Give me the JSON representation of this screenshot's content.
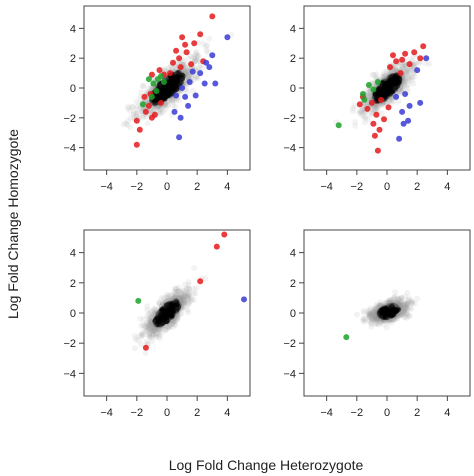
{
  "figure": {
    "xlabel": "Log Fold Change Heterozygote",
    "ylabel": "Log Fold Change Homozygote"
  },
  "colors": {
    "background_points": "#9a9a9a",
    "dense_points": "#000000",
    "red_points": "#e41a1c",
    "blue_points": "#3b3bd6",
    "green_points": "#1aa32a"
  },
  "chart_data": [
    {
      "type": "scatter",
      "panel": "top-left",
      "xlim": [
        -5.5,
        5.5
      ],
      "ylim": [
        -5.5,
        5.5
      ],
      "xticks": [
        -4,
        -2,
        0,
        2,
        4
      ],
      "yticks": [
        -4,
        -2,
        0,
        2,
        4
      ],
      "grid": false,
      "cloud": {
        "center": [
          0,
          0
        ],
        "spread_major": 1.2,
        "spread_minor": 0.45,
        "tilt_deg": 45
      },
      "groups": [
        {
          "color": "red",
          "points": [
            [
              3.0,
              4.8
            ],
            [
              2.2,
              3.6
            ],
            [
              1.8,
              3.0
            ],
            [
              1.3,
              2.4
            ],
            [
              0.8,
              2.0
            ],
            [
              0.4,
              1.7
            ],
            [
              1.2,
              2.9
            ],
            [
              0.6,
              2.5
            ],
            [
              -0.5,
              1.2
            ],
            [
              -1.0,
              0.9
            ],
            [
              -1.5,
              -0.6
            ],
            [
              -1.2,
              -1.2
            ],
            [
              -0.8,
              -1.8
            ],
            [
              -2.0,
              -2.2
            ],
            [
              -1.8,
              -2.8
            ],
            [
              -2.0,
              -3.8
            ],
            [
              -1.0,
              -2.0
            ],
            [
              -1.4,
              -1.6
            ],
            [
              -0.4,
              -1.0
            ],
            [
              0.2,
              1.0
            ],
            [
              1.6,
              1.6
            ],
            [
              2.4,
              1.8
            ],
            [
              -1.1,
              -0.4
            ],
            [
              0.9,
              1.4
            ],
            [
              1.0,
              3.4
            ],
            [
              -0.2,
              0.9
            ]
          ]
        },
        {
          "color": "blue",
          "points": [
            [
              4.0,
              3.4
            ],
            [
              2.6,
              1.7
            ],
            [
              2.2,
              1.0
            ],
            [
              1.5,
              0.4
            ],
            [
              1.0,
              0.0
            ],
            [
              0.6,
              -0.5
            ],
            [
              1.4,
              -1.2
            ],
            [
              1.9,
              -0.5
            ],
            [
              2.8,
              1.4
            ],
            [
              3.2,
              0.3
            ],
            [
              0.5,
              -1.6
            ],
            [
              0.9,
              -2.0
            ],
            [
              0.8,
              -3.3
            ],
            [
              3.0,
              2.2
            ],
            [
              1.2,
              -0.6
            ],
            [
              2.5,
              0.3
            ],
            [
              1.7,
              1.1
            ]
          ]
        },
        {
          "color": "green",
          "points": [
            [
              -1.2,
              0.6
            ],
            [
              -0.6,
              0.6
            ],
            [
              -0.9,
              0.3
            ],
            [
              -0.4,
              0.8
            ],
            [
              -1.6,
              -1.1
            ],
            [
              -0.7,
              -0.2
            ],
            [
              -0.2,
              0.4
            ],
            [
              -1.0,
              -0.6
            ]
          ]
        }
      ]
    },
    {
      "type": "scatter",
      "panel": "top-right",
      "xlim": [
        -5.5,
        5.5
      ],
      "ylim": [
        -5.5,
        5.5
      ],
      "xticks": [
        -4,
        -2,
        0,
        2,
        4
      ],
      "yticks": [
        -4,
        -2,
        0,
        2,
        4
      ],
      "grid": false,
      "cloud": {
        "center": [
          0,
          0
        ],
        "spread_major": 1.0,
        "spread_minor": 0.4,
        "tilt_deg": 45
      },
      "groups": [
        {
          "color": "red",
          "points": [
            [
              2.4,
              2.8
            ],
            [
              1.8,
              2.4
            ],
            [
              1.2,
              2.3
            ],
            [
              1.5,
              1.6
            ],
            [
              0.6,
              1.8
            ],
            [
              0.2,
              1.4
            ],
            [
              0.9,
              1.0
            ],
            [
              2.2,
              2.0
            ],
            [
              -0.4,
              -0.8
            ],
            [
              -1.0,
              -1.0
            ],
            [
              -0.7,
              -1.8
            ],
            [
              -0.9,
              -2.4
            ],
            [
              -0.5,
              -2.8
            ],
            [
              -0.8,
              -3.2
            ],
            [
              -0.6,
              -4.2
            ],
            [
              -1.6,
              -0.6
            ],
            [
              -1.8,
              -1.1
            ],
            [
              -1.3,
              -1.4
            ],
            [
              0.1,
              -1.3
            ],
            [
              0.4,
              2.2
            ],
            [
              -0.2,
              -2.1
            ],
            [
              1.0,
              1.9
            ]
          ]
        },
        {
          "color": "blue",
          "points": [
            [
              2.2,
              -1.0
            ],
            [
              1.5,
              -1.2
            ],
            [
              1.0,
              -1.6
            ],
            [
              1.4,
              -2.2
            ],
            [
              1.1,
              -2.4
            ],
            [
              0.8,
              -3.4
            ],
            [
              2.6,
              2.0
            ],
            [
              2.0,
              1.2
            ],
            [
              0.6,
              -0.6
            ],
            [
              1.2,
              -0.4
            ]
          ]
        },
        {
          "color": "green",
          "points": [
            [
              -3.2,
              -2.5
            ],
            [
              -1.6,
              -0.4
            ],
            [
              -1.2,
              0.2
            ],
            [
              -0.9,
              -0.1
            ],
            [
              -1.5,
              -0.8
            ],
            [
              -0.6,
              0.4
            ]
          ]
        }
      ]
    },
    {
      "type": "scatter",
      "panel": "bottom-left",
      "xlim": [
        -5.5,
        5.5
      ],
      "ylim": [
        -5.5,
        5.5
      ],
      "xticks": [
        -4,
        -2,
        0,
        2,
        4
      ],
      "yticks": [
        -4,
        -2,
        0,
        2,
        4
      ],
      "grid": false,
      "cloud": {
        "center": [
          0,
          0
        ],
        "spread_major": 0.9,
        "spread_minor": 0.35,
        "tilt_deg": 45
      },
      "groups": [
        {
          "color": "red",
          "points": [
            [
              3.8,
              5.2
            ],
            [
              3.3,
              4.4
            ],
            [
              2.2,
              2.1
            ],
            [
              -1.4,
              -2.3
            ]
          ]
        },
        {
          "color": "blue",
          "points": [
            [
              5.1,
              0.9
            ]
          ]
        },
        {
          "color": "green",
          "points": [
            [
              -1.9,
              0.8
            ]
          ]
        }
      ]
    },
    {
      "type": "scatter",
      "panel": "bottom-right",
      "xlim": [
        -5.5,
        5.5
      ],
      "ylim": [
        -5.5,
        5.5
      ],
      "xticks": [
        -4,
        -2,
        0,
        2,
        4
      ],
      "yticks": [
        -4,
        -2,
        0,
        2,
        4
      ],
      "grid": false,
      "cloud": {
        "center": [
          0.1,
          0.1
        ],
        "spread_major": 0.6,
        "spread_minor": 0.3,
        "tilt_deg": 20
      },
      "groups": [
        {
          "color": "green",
          "points": [
            [
              -2.7,
              -1.6
            ]
          ]
        }
      ]
    }
  ]
}
